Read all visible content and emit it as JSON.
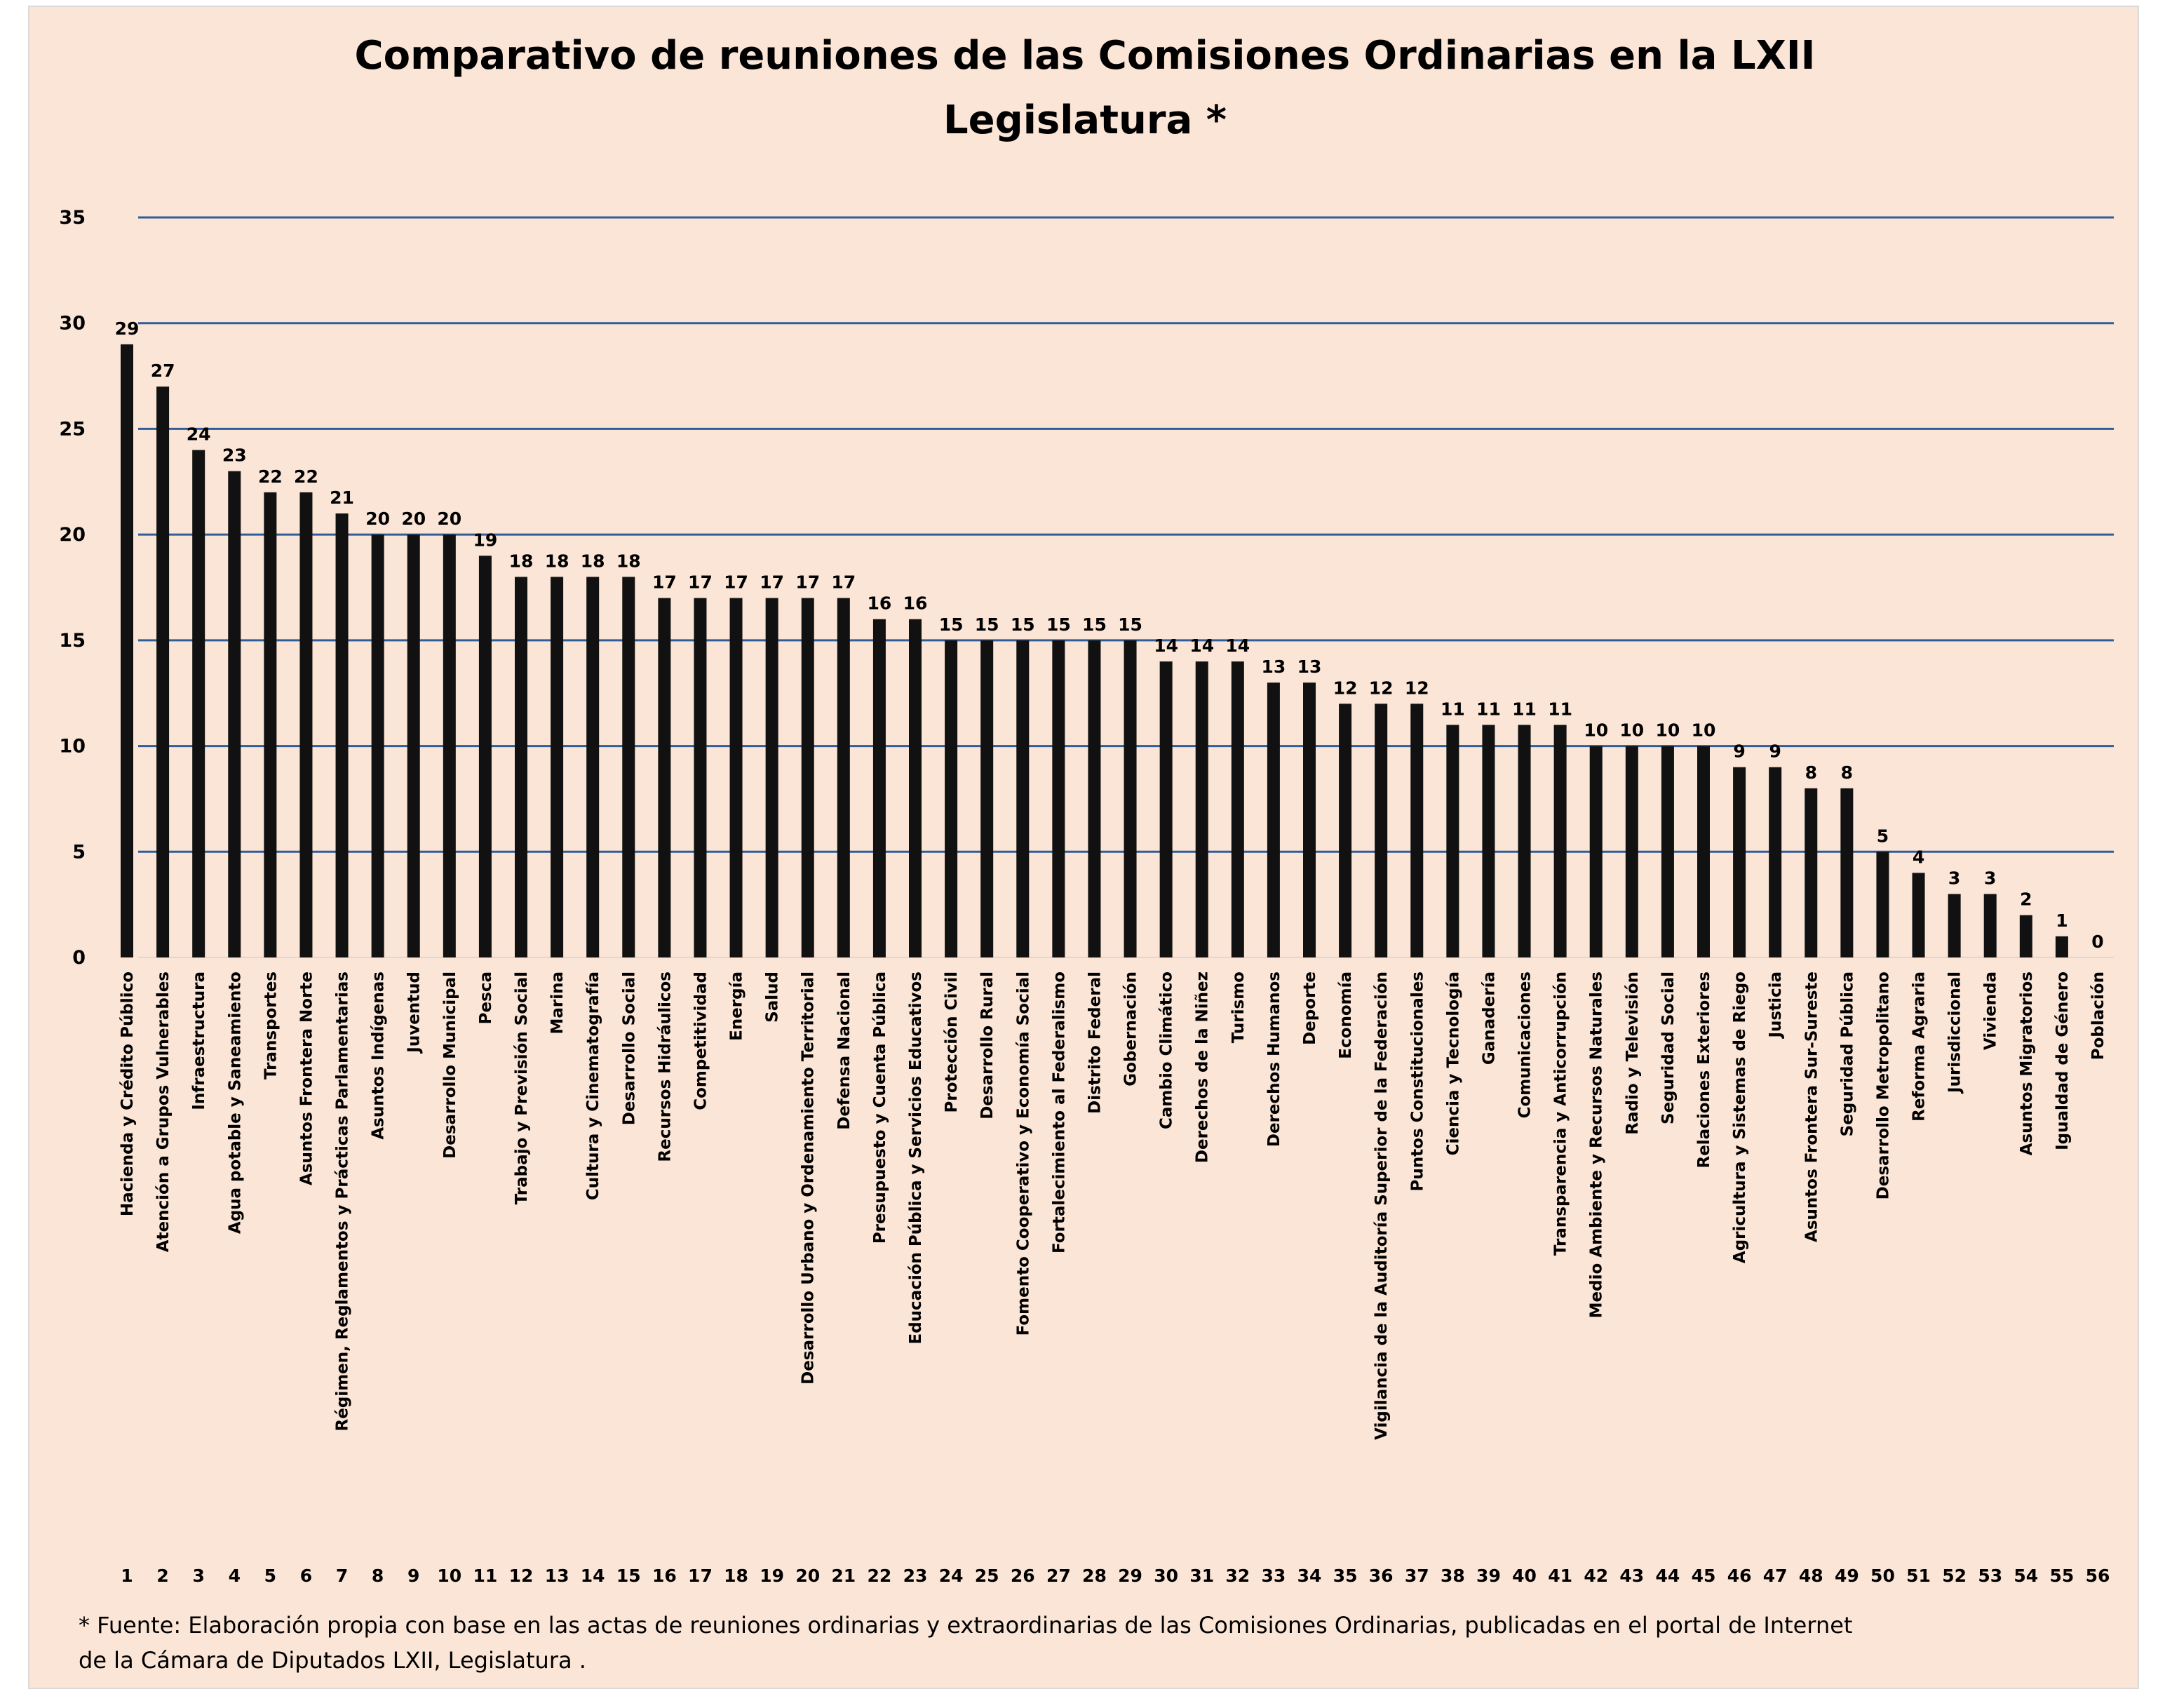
{
  "chart_data": {
    "type": "bar",
    "title": "Comparativo de reuniones de las Comisiones Ordinarias en la LXII Legislatura *",
    "title_lines": [
      "Comparativo de reuniones de las Comisiones Ordinarias en la LXII",
      "Legislatura *"
    ],
    "ylim": [
      0,
      35
    ],
    "yticks": [
      0,
      5,
      10,
      15,
      20,
      25,
      30,
      35
    ],
    "grid": true,
    "legend": "none",
    "colors": {
      "bar": "#111111",
      "grid": "#2e5d9a",
      "background": "#fbe5d6"
    },
    "categories": [
      "Hacienda y Crédito Público",
      "Atención a Grupos Vulnerables",
      "Infraestructura",
      "Agua potable y Saneamiento",
      "Transportes",
      "Asuntos Frontera Norte",
      "Régimen, Reglamentos y Prácticas Parlamentarias",
      "Asuntos Indígenas",
      "Juventud",
      "Desarrollo Municipal",
      "Pesca",
      "Trabajo y Previsión Social",
      "Marina",
      "Cultura y Cinematografía",
      "Desarrollo Social",
      "Recursos Hidráulicos",
      "Competitividad",
      "Energía",
      "Salud",
      "Desarrollo Urbano y Ordenamiento Territorial",
      "Defensa Nacional",
      "Presupuesto y Cuenta Pública",
      "Educación Pública y Servicios Educativos",
      "Protección Civil",
      "Desarrollo Rural",
      "Fomento Cooperativo y Economía Social",
      "Fortalecimiento al Federalismo",
      "Distrito Federal",
      "Gobernación",
      "Cambio Climático",
      "Derechos de la Niñez",
      "Turismo",
      "Derechos Humanos",
      "Deporte",
      "Economía",
      "Vigilancia de la Auditoría Superior de la Federación",
      "Puntos Constitucionales",
      "Ciencia y Tecnología",
      "Ganadería",
      "Comunicaciones",
      "Transparencia y Anticorrupción",
      "Medio Ambiente y Recursos Naturales",
      "Radio y Televisión",
      "Seguridad Social",
      "Relaciones Exteriores",
      "Agricultura y Sistemas de Riego",
      "Justicia",
      "Asuntos Frontera Sur-Sureste",
      "Seguridad Pública",
      "Desarrollo Metropolitano",
      "Reforma Agraria",
      "Jurisdiccional",
      "Vivienda",
      "Asuntos Migratorios",
      "Igualdad de Género",
      "Población"
    ],
    "numbers": [
      "1",
      "2",
      "3",
      "4",
      "5",
      "6",
      "7",
      "8",
      "9",
      "10",
      "11",
      "12",
      "13",
      "14",
      "15",
      "16",
      "17",
      "18",
      "19",
      "20",
      "21",
      "22",
      "23",
      "24",
      "25",
      "26",
      "27",
      "28",
      "29",
      "30",
      "31",
      "32",
      "33",
      "34",
      "35",
      "36",
      "37",
      "38",
      "39",
      "40",
      "41",
      "42",
      "43",
      "44",
      "45",
      "46",
      "47",
      "48",
      "49",
      "50",
      "51",
      "52",
      "53",
      "54",
      "55",
      "56"
    ],
    "values": [
      29,
      27,
      24,
      23,
      22,
      22,
      21,
      20,
      20,
      20,
      19,
      18,
      18,
      18,
      18,
      17,
      17,
      17,
      17,
      17,
      17,
      16,
      16,
      15,
      15,
      15,
      15,
      15,
      15,
      14,
      14,
      14,
      13,
      13,
      12,
      12,
      12,
      11,
      11,
      11,
      11,
      10,
      10,
      10,
      10,
      9,
      9,
      8,
      8,
      5,
      4,
      3,
      3,
      2,
      1,
      0
    ],
    "footnote_lines": [
      "* Fuente: Elaboración propia  con base en las actas de reuniones ordinarias y extraordinarias de las Comisiones Ordinarias, publicadas en el portal de Internet",
      "de la Cámara de  Diputados LXII, Legislatura ."
    ]
  }
}
